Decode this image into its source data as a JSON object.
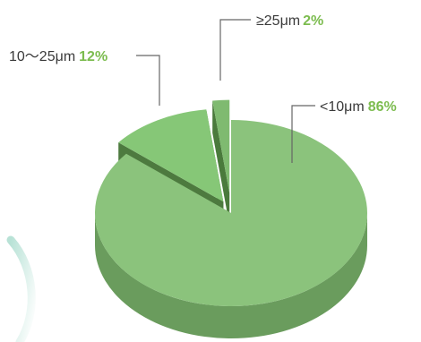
{
  "chart_data": {
    "type": "pie",
    "style": "3d-exploded",
    "title": "",
    "categories": [
      "<10μm",
      "10～25μm",
      "≥25μm"
    ],
    "values": [
      86,
      12,
      2
    ],
    "percent_labels": [
      "86%",
      "12%",
      "2%"
    ],
    "legend": "none"
  },
  "colors": {
    "slice_top": [
      "#8bc37c",
      "#86c777",
      "#7fba70"
    ],
    "slice_side": [
      "#6a9c5d",
      "#4d7a3f",
      "#4a7a3c"
    ],
    "percent_text": "#7cbc4f",
    "leader_line": "#666666",
    "decor_ring": "#9ad2c3"
  }
}
